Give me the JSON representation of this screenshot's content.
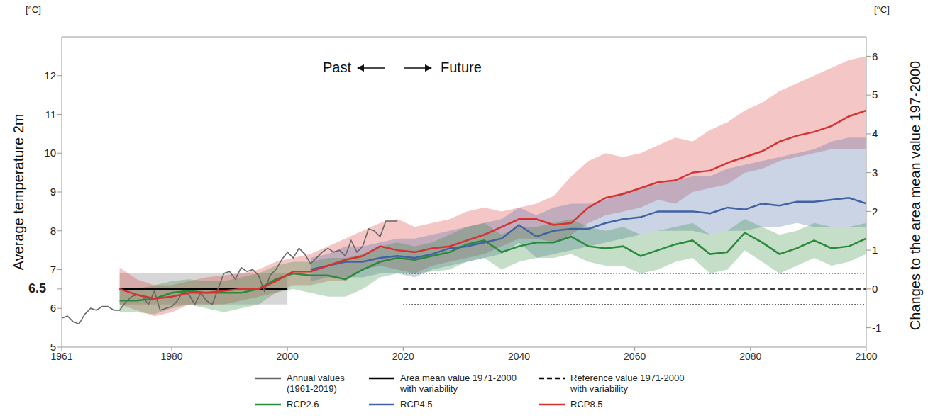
{
  "chart_data": {
    "type": "line",
    "y_label": "Average temperature 2m",
    "y_unit": "[°C]",
    "y2_label": "Changes to the area mean value 197-2000",
    "y2_unit": "[°C]",
    "annotations": [
      "Past",
      "Future"
    ],
    "xlim": [
      1961,
      2100
    ],
    "xticks": [
      1961,
      1980,
      2000,
      2020,
      2040,
      2060,
      2080,
      2100
    ],
    "ylim": [
      5,
      13
    ],
    "yticks": [
      5,
      6,
      6.5,
      7,
      8,
      9,
      10,
      11,
      12
    ],
    "y2lim": [
      -1.5,
      6.5
    ],
    "y2ticks": [
      -1,
      0,
      1,
      2,
      3,
      4,
      5,
      6
    ],
    "grid": false,
    "legend": "bottom",
    "area_mean": {
      "name": "Area mean value 1971-2000 with variability",
      "value": 6.5,
      "variability": [
        6.1,
        6.9
      ],
      "x": [
        1971,
        2000
      ],
      "color": "#000000"
    },
    "reference_value": {
      "name": "Reference value 1971-2000 with variability",
      "value": 0,
      "variability": [
        -0.4,
        0.4
      ],
      "x": [
        2020,
        2100
      ],
      "axis": "y2",
      "color": "#000000",
      "line_style": "dashed"
    },
    "series": [
      {
        "name": "Annual values (1961-2019)",
        "color": "#666666",
        "x": [
          1961,
          1962,
          1963,
          1964,
          1965,
          1966,
          1967,
          1968,
          1969,
          1970,
          1971,
          1972,
          1973,
          1974,
          1975,
          1976,
          1977,
          1978,
          1979,
          1980,
          1981,
          1982,
          1983,
          1984,
          1985,
          1986,
          1987,
          1988,
          1989,
          1990,
          1991,
          1992,
          1993,
          1994,
          1995,
          1996,
          1997,
          1998,
          1999,
          2000,
          2001,
          2002,
          2003,
          2004,
          2005,
          2006,
          2007,
          2008,
          2009,
          2010,
          2011,
          2012,
          2013,
          2014,
          2015,
          2016,
          2017,
          2018,
          2019
        ],
        "values": [
          5.75,
          5.8,
          5.65,
          5.6,
          5.85,
          6.0,
          5.95,
          6.05,
          6.05,
          5.95,
          5.95,
          6.15,
          6.3,
          6.35,
          6.3,
          6.1,
          6.45,
          5.95,
          6.0,
          6.05,
          6.2,
          6.45,
          6.35,
          6.1,
          6.4,
          6.2,
          6.1,
          6.5,
          6.9,
          6.95,
          6.75,
          7.05,
          6.95,
          7.0,
          6.85,
          6.45,
          6.85,
          7.0,
          7.25,
          7.45,
          7.3,
          7.55,
          7.4,
          7.15,
          7.3,
          7.45,
          7.55,
          7.45,
          7.5,
          7.35,
          7.75,
          7.45,
          7.6,
          8.05,
          8.0,
          7.85,
          8.25,
          8.25,
          8.25
        ]
      },
      {
        "name": "RCP2.6",
        "color": "#2a8a3a",
        "x": [
          1971,
          1974,
          1977,
          1980,
          1983,
          1986,
          1989,
          1992,
          1995,
          1998,
          2001,
          2004,
          2007,
          2010,
          2013,
          2016,
          2019,
          2022,
          2025,
          2028,
          2031,
          2034,
          2037,
          2040,
          2043,
          2046,
          2049,
          2052,
          2055,
          2058,
          2061,
          2064,
          2067,
          2070,
          2073,
          2076,
          2079,
          2082,
          2085,
          2088,
          2091,
          2094,
          2097,
          2100
        ],
        "values": [
          6.2,
          6.2,
          6.25,
          6.4,
          6.45,
          6.4,
          6.4,
          6.4,
          6.5,
          6.75,
          6.9,
          6.85,
          6.85,
          6.75,
          7.0,
          7.2,
          7.3,
          7.25,
          7.35,
          7.45,
          7.65,
          7.75,
          7.45,
          7.6,
          7.7,
          7.7,
          7.85,
          7.6,
          7.55,
          7.6,
          7.35,
          7.5,
          7.65,
          7.75,
          7.4,
          7.45,
          7.95,
          7.7,
          7.4,
          7.55,
          7.75,
          7.55,
          7.6,
          7.8
        ],
        "band_low": [
          5.9,
          5.9,
          5.85,
          6.0,
          6.1,
          6.0,
          5.9,
          6.0,
          6.1,
          6.4,
          6.5,
          6.4,
          6.3,
          6.3,
          6.5,
          6.8,
          6.9,
          6.9,
          6.95,
          7.0,
          7.2,
          7.3,
          7.0,
          7.2,
          7.3,
          7.3,
          7.4,
          7.2,
          7.1,
          7.1,
          6.9,
          7.0,
          7.2,
          7.3,
          6.9,
          7.0,
          7.5,
          7.2,
          6.9,
          7.1,
          7.3,
          7.1,
          7.2,
          7.4
        ],
        "band_high": [
          6.5,
          6.5,
          6.6,
          6.7,
          6.75,
          6.7,
          6.7,
          6.8,
          6.9,
          7.1,
          7.2,
          7.2,
          7.3,
          7.3,
          7.4,
          7.6,
          7.7,
          7.6,
          7.7,
          7.9,
          8.1,
          8.2,
          7.9,
          8.1,
          8.1,
          8.2,
          8.3,
          8.1,
          8.0,
          8.1,
          7.9,
          8.0,
          8.1,
          8.2,
          7.9,
          8.0,
          8.3,
          8.1,
          7.9,
          8.0,
          8.2,
          8.1,
          8.1,
          8.2
        ]
      },
      {
        "name": "RCP4.5",
        "color": "#4163a3",
        "x": [
          2004,
          2007,
          2010,
          2013,
          2016,
          2019,
          2022,
          2025,
          2028,
          2031,
          2034,
          2037,
          2040,
          2043,
          2046,
          2049,
          2052,
          2055,
          2058,
          2061,
          2064,
          2067,
          2070,
          2073,
          2076,
          2079,
          2082,
          2085,
          2088,
          2091,
          2094,
          2097,
          2100
        ],
        "values": [
          7.0,
          7.1,
          7.2,
          7.2,
          7.3,
          7.35,
          7.3,
          7.4,
          7.55,
          7.6,
          7.7,
          7.8,
          8.15,
          7.85,
          8.0,
          8.05,
          8.05,
          8.2,
          8.3,
          8.35,
          8.5,
          8.5,
          8.5,
          8.45,
          8.6,
          8.55,
          8.7,
          8.65,
          8.75,
          8.75,
          8.8,
          8.85,
          8.7
        ],
        "band_low": [
          6.7,
          6.8,
          6.8,
          6.8,
          6.9,
          6.9,
          6.8,
          7.0,
          7.1,
          7.2,
          7.3,
          7.4,
          7.7,
          7.3,
          7.4,
          7.5,
          7.6,
          7.7,
          7.8,
          7.9,
          8.0,
          8.0,
          8.0,
          7.9,
          8.0,
          8.0,
          8.1,
          8.1,
          8.2,
          8.1,
          8.1,
          8.1,
          8.1
        ],
        "band_high": [
          7.3,
          7.4,
          7.6,
          7.6,
          7.7,
          7.8,
          7.8,
          7.9,
          8.0,
          8.1,
          8.2,
          8.3,
          8.6,
          8.4,
          8.6,
          8.7,
          8.7,
          8.8,
          9.0,
          9.1,
          9.2,
          9.3,
          9.4,
          9.4,
          9.6,
          9.7,
          9.8,
          9.9,
          10.0,
          10.1,
          10.3,
          10.4,
          10.4
        ]
      },
      {
        "name": "RCP8.5",
        "color": "#d63232",
        "x": [
          1971,
          1974,
          1977,
          1980,
          1983,
          1986,
          1989,
          1992,
          1995,
          1998,
          2001,
          2004,
          2007,
          2010,
          2013,
          2016,
          2019,
          2022,
          2025,
          2028,
          2031,
          2034,
          2037,
          2040,
          2043,
          2046,
          2049,
          2052,
          2055,
          2058,
          2061,
          2064,
          2067,
          2070,
          2073,
          2076,
          2079,
          2082,
          2085,
          2088,
          2091,
          2094,
          2097,
          2100
        ],
        "values": [
          6.5,
          6.35,
          6.25,
          6.3,
          6.4,
          6.4,
          6.45,
          6.5,
          6.5,
          6.7,
          6.95,
          6.95,
          7.1,
          7.25,
          7.35,
          7.6,
          7.5,
          7.45,
          7.55,
          7.6,
          7.75,
          7.9,
          8.1,
          8.3,
          8.3,
          8.15,
          8.2,
          8.6,
          8.85,
          8.95,
          9.1,
          9.25,
          9.3,
          9.5,
          9.55,
          9.75,
          9.9,
          10.05,
          10.3,
          10.45,
          10.55,
          10.7,
          10.95,
          11.1
        ],
        "band_low": [
          6.1,
          5.95,
          5.8,
          5.9,
          6.1,
          6.1,
          6.1,
          6.2,
          6.3,
          6.4,
          6.6,
          6.6,
          6.7,
          6.7,
          7.0,
          7.1,
          7.0,
          6.9,
          7.1,
          7.2,
          7.3,
          7.4,
          7.6,
          7.8,
          7.8,
          7.7,
          7.9,
          8.2,
          8.4,
          8.5,
          8.6,
          8.8,
          8.7,
          9.0,
          9.1,
          9.2,
          9.5,
          9.6,
          9.8,
          9.9,
          10.0,
          10.1,
          10.1,
          10.1
        ],
        "band_high": [
          7.05,
          6.75,
          6.6,
          6.6,
          6.7,
          6.8,
          6.85,
          6.9,
          7.0,
          7.2,
          7.3,
          7.4,
          7.6,
          7.8,
          8.0,
          8.2,
          8.3,
          8.1,
          8.2,
          8.3,
          8.5,
          8.6,
          8.5,
          8.6,
          8.7,
          8.9,
          9.4,
          9.8,
          10.0,
          9.9,
          10.0,
          10.2,
          10.4,
          10.3,
          10.6,
          10.8,
          11.1,
          11.3,
          11.6,
          11.8,
          12.0,
          12.2,
          12.4,
          12.5
        ]
      }
    ]
  }
}
